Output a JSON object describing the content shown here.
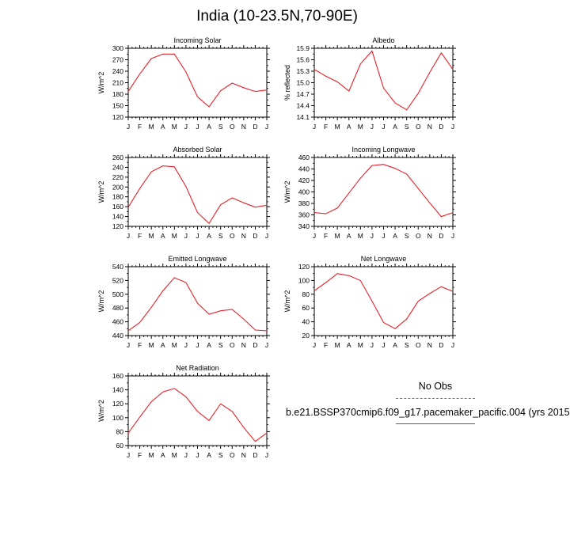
{
  "title": "India (10-23.5N,70-90E)",
  "legend": {
    "obs_label": "No Obs",
    "obs_color": "#6b6bdc",
    "case_label": "b.e21.BSSP370cmip6.f09_g17.pacemaker_pacific.004 (yrs 2015",
    "case_color": "#e8202a"
  },
  "chart_data": [
    {
      "type": "line",
      "title": "Incoming Solar",
      "ylabel": "W/m^2",
      "categories": [
        "J",
        "F",
        "M",
        "A",
        "M",
        "J",
        "J",
        "A",
        "S",
        "O",
        "N",
        "D",
        "J"
      ],
      "ylim": [
        120,
        300
      ],
      "yticks": [
        120,
        150,
        180,
        210,
        240,
        270,
        300
      ],
      "ytick_labels": [
        "120",
        "150",
        "180",
        "210",
        "240",
        "270",
        "300"
      ],
      "series": [
        {
          "values": [
            187,
            233,
            273,
            285,
            285,
            238,
            173,
            147,
            189,
            209,
            197,
            187,
            191
          ]
        }
      ]
    },
    {
      "type": "line",
      "title": "Albedo",
      "ylabel": "% reflected",
      "categories": [
        "J",
        "F",
        "M",
        "A",
        "M",
        "J",
        "J",
        "A",
        "S",
        "O",
        "N",
        "D",
        "J"
      ],
      "ylim": [
        14.1,
        15.9
      ],
      "yticks": [
        14.1,
        14.4,
        14.7,
        15.0,
        15.3,
        15.6,
        15.9
      ],
      "ytick_labels": [
        "14.1",
        "14.4",
        "14.7",
        "15.0",
        "15.3",
        "15.6",
        "15.9"
      ],
      "series": [
        {
          "values": [
            15.35,
            15.17,
            15.02,
            14.78,
            15.49,
            15.83,
            14.86,
            14.47,
            14.29,
            14.72,
            15.27,
            15.78,
            15.35
          ]
        }
      ]
    },
    {
      "type": "line",
      "title": "Absorbed Solar",
      "ylabel": "W/m^2",
      "categories": [
        "J",
        "F",
        "M",
        "A",
        "M",
        "J",
        "J",
        "A",
        "S",
        "O",
        "N",
        "D",
        "J"
      ],
      "ylim": [
        120,
        260
      ],
      "yticks": [
        120,
        140,
        160,
        180,
        200,
        220,
        240,
        260
      ],
      "ytick_labels": [
        "120",
        "140",
        "160",
        "180",
        "200",
        "220",
        "240",
        "260"
      ],
      "series": [
        {
          "values": [
            159,
            197,
            231,
            243,
            241,
            201,
            148,
            126,
            164,
            178,
            168,
            159,
            163
          ]
        }
      ]
    },
    {
      "type": "line",
      "title": "Incoming Longwave",
      "ylabel": "W/m^2",
      "categories": [
        "J",
        "F",
        "M",
        "A",
        "M",
        "J",
        "J",
        "A",
        "S",
        "O",
        "N",
        "D",
        "J"
      ],
      "ylim": [
        340,
        460
      ],
      "yticks": [
        340,
        360,
        380,
        400,
        420,
        440,
        460
      ],
      "ytick_labels": [
        "340",
        "360",
        "380",
        "400",
        "420",
        "440",
        "460"
      ],
      "series": [
        {
          "values": [
            364,
            362,
            372,
            398,
            424,
            446,
            448,
            441,
            431,
            406,
            381,
            357,
            364
          ]
        }
      ]
    },
    {
      "type": "line",
      "title": "Emitted Longwave",
      "ylabel": "W/m^2",
      "categories": [
        "J",
        "F",
        "M",
        "A",
        "M",
        "J",
        "J",
        "A",
        "S",
        "O",
        "N",
        "D",
        "J"
      ],
      "ylim": [
        440,
        540
      ],
      "yticks": [
        440,
        460,
        480,
        500,
        520,
        540
      ],
      "ytick_labels": [
        "440",
        "460",
        "480",
        "500",
        "520",
        "540"
      ],
      "series": [
        {
          "values": [
            447,
            459,
            481,
            505,
            524,
            517,
            487,
            471,
            476,
            478,
            464,
            448,
            447
          ]
        }
      ]
    },
    {
      "type": "line",
      "title": "Net Longwave",
      "ylabel": "W/m^2",
      "categories": [
        "J",
        "F",
        "M",
        "A",
        "M",
        "J",
        "J",
        "A",
        "S",
        "O",
        "N",
        "D",
        "J"
      ],
      "ylim": [
        20,
        120
      ],
      "yticks": [
        20,
        40,
        60,
        80,
        100,
        120
      ],
      "ytick_labels": [
        "20",
        "40",
        "60",
        "80",
        "100",
        "120"
      ],
      "series": [
        {
          "values": [
            85,
            97,
            110,
            107,
            100,
            70,
            39,
            30,
            44,
            70,
            81,
            91,
            84
          ]
        }
      ]
    },
    {
      "type": "line",
      "title": "Net Radiation",
      "ylabel": "W/m^2",
      "categories": [
        "J",
        "F",
        "M",
        "A",
        "M",
        "J",
        "J",
        "A",
        "S",
        "O",
        "N",
        "D",
        "J"
      ],
      "ylim": [
        60,
        160
      ],
      "yticks": [
        60,
        80,
        100,
        120,
        140,
        160
      ],
      "ytick_labels": [
        "60",
        "80",
        "100",
        "120",
        "140",
        "160"
      ],
      "series": [
        {
          "values": [
            78,
            101,
            123,
            137,
            142,
            130,
            109,
            96,
            120,
            109,
            86,
            66,
            78
          ]
        }
      ]
    }
  ]
}
